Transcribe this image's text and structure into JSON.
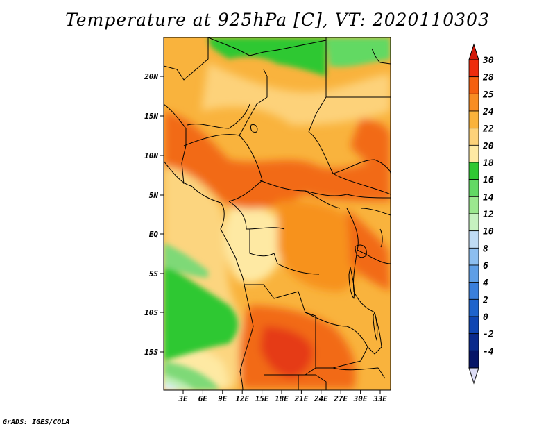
{
  "title": "Temperature at 925hPa [C], VT: 2020110303",
  "footer": "GrADS: IGES/COLA",
  "lat_labels": [
    "20N",
    "15N",
    "10N",
    "5N",
    "EQ",
    "5S",
    "10S",
    "15S"
  ],
  "lon_labels": [
    "3E",
    "6E",
    "9E",
    "12E",
    "15E",
    "18E",
    "21E",
    "24E",
    "27E",
    "30E",
    "33E"
  ],
  "colorbar": {
    "labels": [
      "30",
      "28",
      "25",
      "24",
      "22",
      "20",
      "18",
      "16",
      "14",
      "12",
      "10",
      "8",
      "6",
      "4",
      "2",
      "0",
      "-2",
      "-4"
    ],
    "colors": [
      "#ee2c0c",
      "#f5600f",
      "#f88d22",
      "#fab33b",
      "#fdd27a",
      "#fee9a3",
      "#2fc832",
      "#62d964",
      "#9be88f",
      "#c6f2c0",
      "#c0dcf5",
      "#8cbef0",
      "#5e9ee6",
      "#3a7fdc",
      "#1e63cc",
      "#0f45b2",
      "#0a2a8c",
      "#061567"
    ],
    "top_arrow_color": "#d2190a",
    "bottom_arrow_color": "#dcdcf5"
  },
  "map_colors": {
    "hot": "#e53b12",
    "warm_orange": "#f26a18",
    "orange": "#f7921f",
    "light_orange": "#f9b33d",
    "pale_yellow": "#fcd57f",
    "cream": "#fef0b8",
    "green": "#2fc832",
    "light_green": "#7ed977",
    "pale_green": "#bfeeb6",
    "blue_tint": "#dff0ff"
  }
}
